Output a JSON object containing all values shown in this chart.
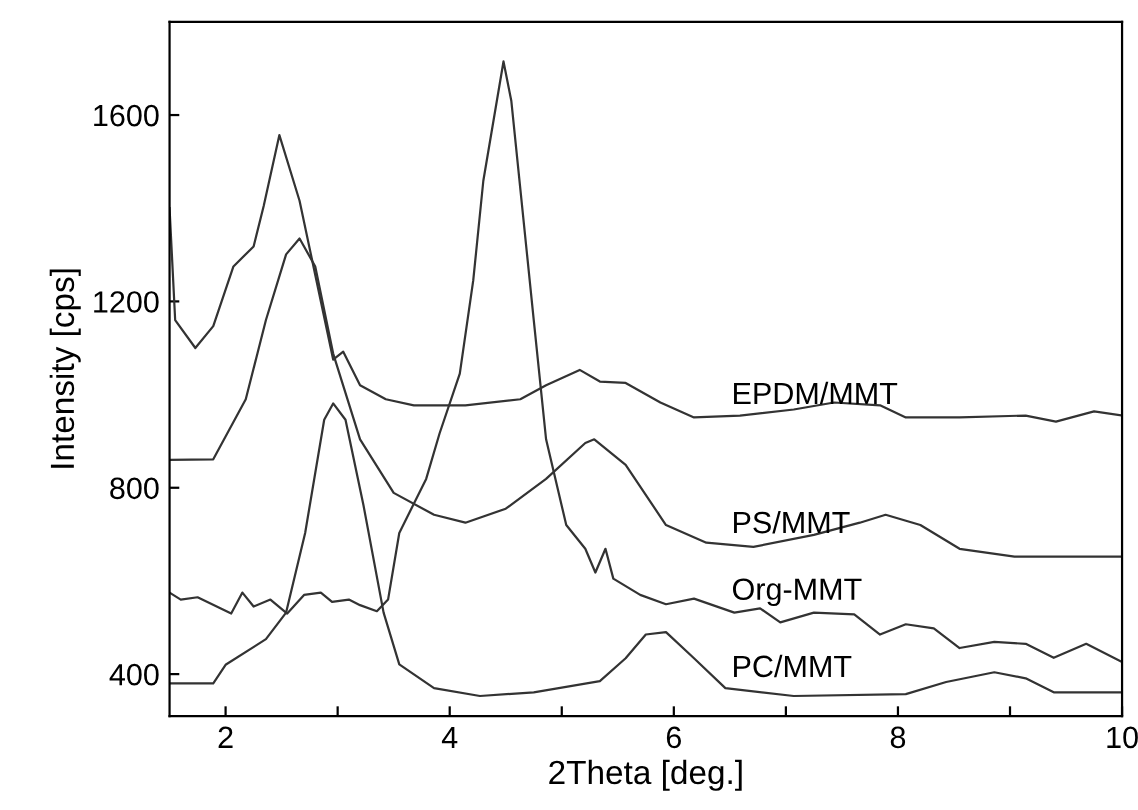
{
  "chart_data": {
    "type": "line",
    "xlabel": "2Theta [deg.]",
    "ylabel": "Intensity [cps]",
    "xlim": [
      1.5,
      10
    ],
    "ylim": [
      310,
      1800
    ],
    "xticks": [
      2,
      {
        "value": 3,
        "label": null
      },
      4,
      {
        "value": 5,
        "label": null
      },
      6,
      {
        "value": 7,
        "label": null
      },
      8,
      {
        "value": 9,
        "label": null
      },
      10
    ],
    "yticks": [
      400,
      800,
      1200,
      1600
    ],
    "grid": false,
    "legend": false,
    "marker": "none",
    "line_style": "solid",
    "series": [
      {
        "name": "EPDM/MMT",
        "color": "#333333",
        "x": [
          1.5,
          1.55,
          1.73,
          1.89,
          2.07,
          2.25,
          2.34,
          2.48,
          2.66,
          2.96,
          3.05,
          3.2,
          3.43,
          3.68,
          4.14,
          4.63,
          4.86,
          5.16,
          5.34,
          5.57,
          5.88,
          6.18,
          6.59,
          7.07,
          7.43,
          7.84,
          8.07,
          8.55,
          9.14,
          9.41,
          9.75,
          10
        ],
        "values": [
          1400,
          1160,
          1100,
          1147,
          1275,
          1318,
          1405,
          1557,
          1416,
          1075,
          1092,
          1020,
          990,
          977,
          977,
          990,
          1020,
          1053,
          1028,
          1025,
          983,
          951,
          955,
          968,
          983,
          977,
          951,
          951,
          955,
          942,
          964,
          955
        ]
      },
      {
        "name": "PS/MMT",
        "color": "#333333",
        "x": [
          1.5,
          1.89,
          2.18,
          2.36,
          2.54,
          2.66,
          2.8,
          2.96,
          3.2,
          3.5,
          3.86,
          4.14,
          4.5,
          4.86,
          5.21,
          5.29,
          5.57,
          5.93,
          6.29,
          6.71,
          7.25,
          7.66,
          7.89,
          8.2,
          8.55,
          9.04,
          10
        ],
        "values": [
          860,
          861,
          990,
          1160,
          1301,
          1335,
          1275,
          1088,
          904,
          789,
          742,
          725,
          755,
          819,
          896,
          904,
          849,
          720,
          682,
          673,
          699,
          725,
          742,
          720,
          669,
          652,
          652
        ]
      },
      {
        "name": "Org-MMT",
        "color": "#333333",
        "x": [
          1.5,
          1.6,
          1.75,
          2.05,
          2.15,
          2.25,
          2.4,
          2.55,
          2.7,
          2.85,
          2.95,
          3.1,
          3.2,
          3.35,
          3.45,
          3.55,
          3.79,
          3.91,
          4.09,
          4.21,
          4.3,
          4.48,
          4.55,
          4.75,
          4.86,
          5.04,
          5.21,
          5.3,
          5.39,
          5.46,
          5.7,
          5.93,
          6.18,
          6.54,
          6.77,
          6.95,
          7.25,
          7.61,
          7.84,
          8.07,
          8.32,
          8.55,
          8.86,
          9.14,
          9.39,
          9.68,
          10
        ],
        "values": [
          575,
          560,
          565,
          530,
          575,
          545,
          560,
          530,
          570,
          575,
          555,
          560,
          548,
          535,
          560,
          703,
          819,
          917,
          1045,
          1245,
          1459,
          1715,
          1630,
          1160,
          904,
          720,
          669,
          618,
          669,
          605,
          570,
          550,
          562,
          532,
          541,
          511,
          532,
          528,
          485,
          507,
          498,
          456,
          469,
          465,
          435,
          465,
          426
        ]
      },
      {
        "name": "PC/MMT",
        "color": "#333333",
        "x": [
          1.5,
          1.89,
          2.0,
          2.36,
          2.54,
          2.71,
          2.88,
          2.96,
          3.07,
          3.23,
          3.41,
          3.55,
          3.86,
          4.27,
          4.75,
          5.34,
          5.57,
          5.75,
          5.93,
          6.18,
          6.46,
          7.07,
          8.07,
          8.43,
          8.86,
          9.14,
          9.39,
          10
        ],
        "values": [
          380,
          380,
          420,
          475,
          532,
          703,
          946,
          981,
          946,
          763,
          532,
          421,
          370,
          353,
          361,
          385,
          434,
          485,
          490,
          434,
          370,
          353,
          357,
          383,
          404,
          391,
          361,
          361
        ]
      }
    ]
  }
}
